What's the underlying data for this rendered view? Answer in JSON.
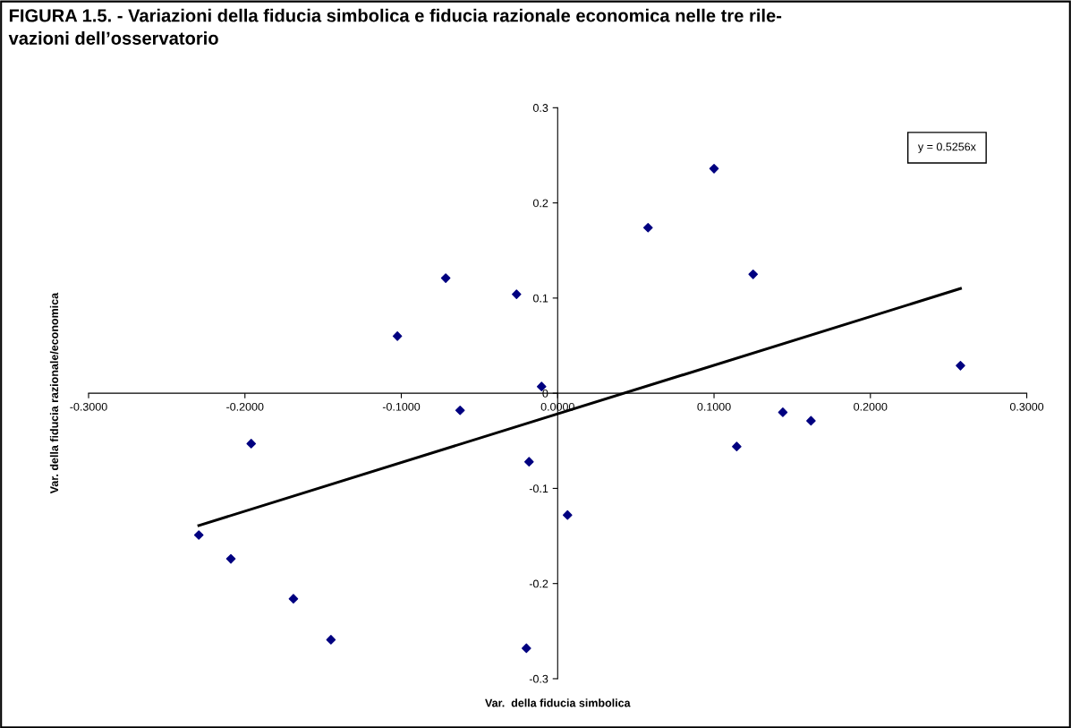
{
  "chart_data": {
    "type": "scatter",
    "title": "FIGURA 1.5. - Variazioni della fiducia simbolica e fiducia razionale economica nelle tre rile-\nvazioni dell’osservatorio",
    "xlabel": "Var.  della fiducia simbolica",
    "ylabel": "Var. della fiducia razionale/economica",
    "annotations": [
      "y = 0.5256x"
    ],
    "xlim": [
      -0.3,
      0.3
    ],
    "xticks": [
      {
        "value": -0.3,
        "label": "-0.3000"
      },
      {
        "value": -0.2,
        "label": "-0.2000"
      },
      {
        "value": -0.1,
        "label": "-0.1000"
      },
      {
        "value": 0,
        "label": "0.0000"
      },
      {
        "value": 0.1,
        "label": "0.1000"
      },
      {
        "value": 0.2,
        "label": "0.2000"
      },
      {
        "value": 0.3,
        "label": "0.3000"
      }
    ],
    "ylim": [
      -0.3,
      0.3
    ],
    "yticks": [
      -0.3,
      -0.2,
      -0.1,
      0,
      0.1,
      0.2,
      0.3
    ],
    "grid": false,
    "series": [
      {
        "color": "#000080",
        "marker": "diamond",
        "x": [
          -0.2295,
          -0.209,
          -0.196,
          -0.169,
          -0.145,
          -0.1025,
          -0.0716,
          -0.0624,
          -0.0263,
          -0.0103,
          -0.0183,
          -0.02,
          0.0063,
          0.0578,
          0.1,
          0.125,
          0.1145,
          0.144,
          0.162,
          0.2576
        ],
        "values": [
          -0.149,
          -0.174,
          -0.053,
          -0.216,
          -0.259,
          0.06,
          0.121,
          -0.018,
          0.104,
          0.007,
          -0.072,
          -0.268,
          -0.128,
          0.174,
          0.236,
          0.125,
          -0.056,
          -0.02,
          -0.029,
          0.029
        ]
      },
      {
        "type": "line",
        "color": "#000000",
        "marker": "none",
        "line_style": "solid",
        "x": [
          -0.2295,
          0.2576
        ],
        "values": [
          -0.139,
          0.11
        ]
      }
    ]
  }
}
